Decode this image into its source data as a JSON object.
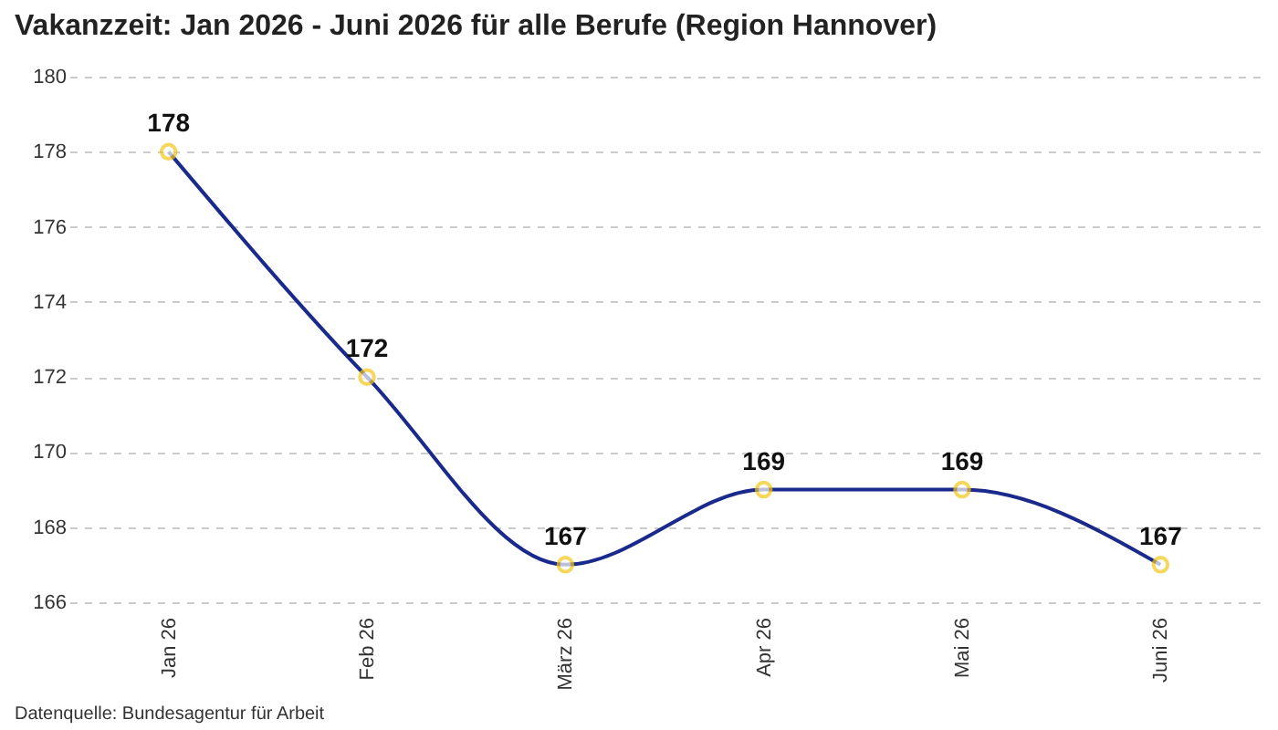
{
  "chart_data": {
    "type": "line",
    "title": "Vakanzzeit: Jan 2026 - Juni 2026 für alle Berufe (Region Hannover)",
    "categories": [
      "Jan 26",
      "Feb 26",
      "März 26",
      "Apr 26",
      "Mai 26",
      "Juni 26"
    ],
    "series": [
      {
        "color": "#1a2a8c",
        "values": [
          178,
          172,
          167,
          169,
          169,
          167
        ]
      }
    ],
    "ylim": [
      166,
      180
    ],
    "yticks": [
      166,
      168,
      170,
      172,
      174,
      176,
      178,
      180
    ],
    "grid": "y",
    "marker": "circle",
    "data_labels": true,
    "legend": false,
    "annotations": [
      "Datenquelle: Bundesagentur für Arbeit"
    ]
  }
}
